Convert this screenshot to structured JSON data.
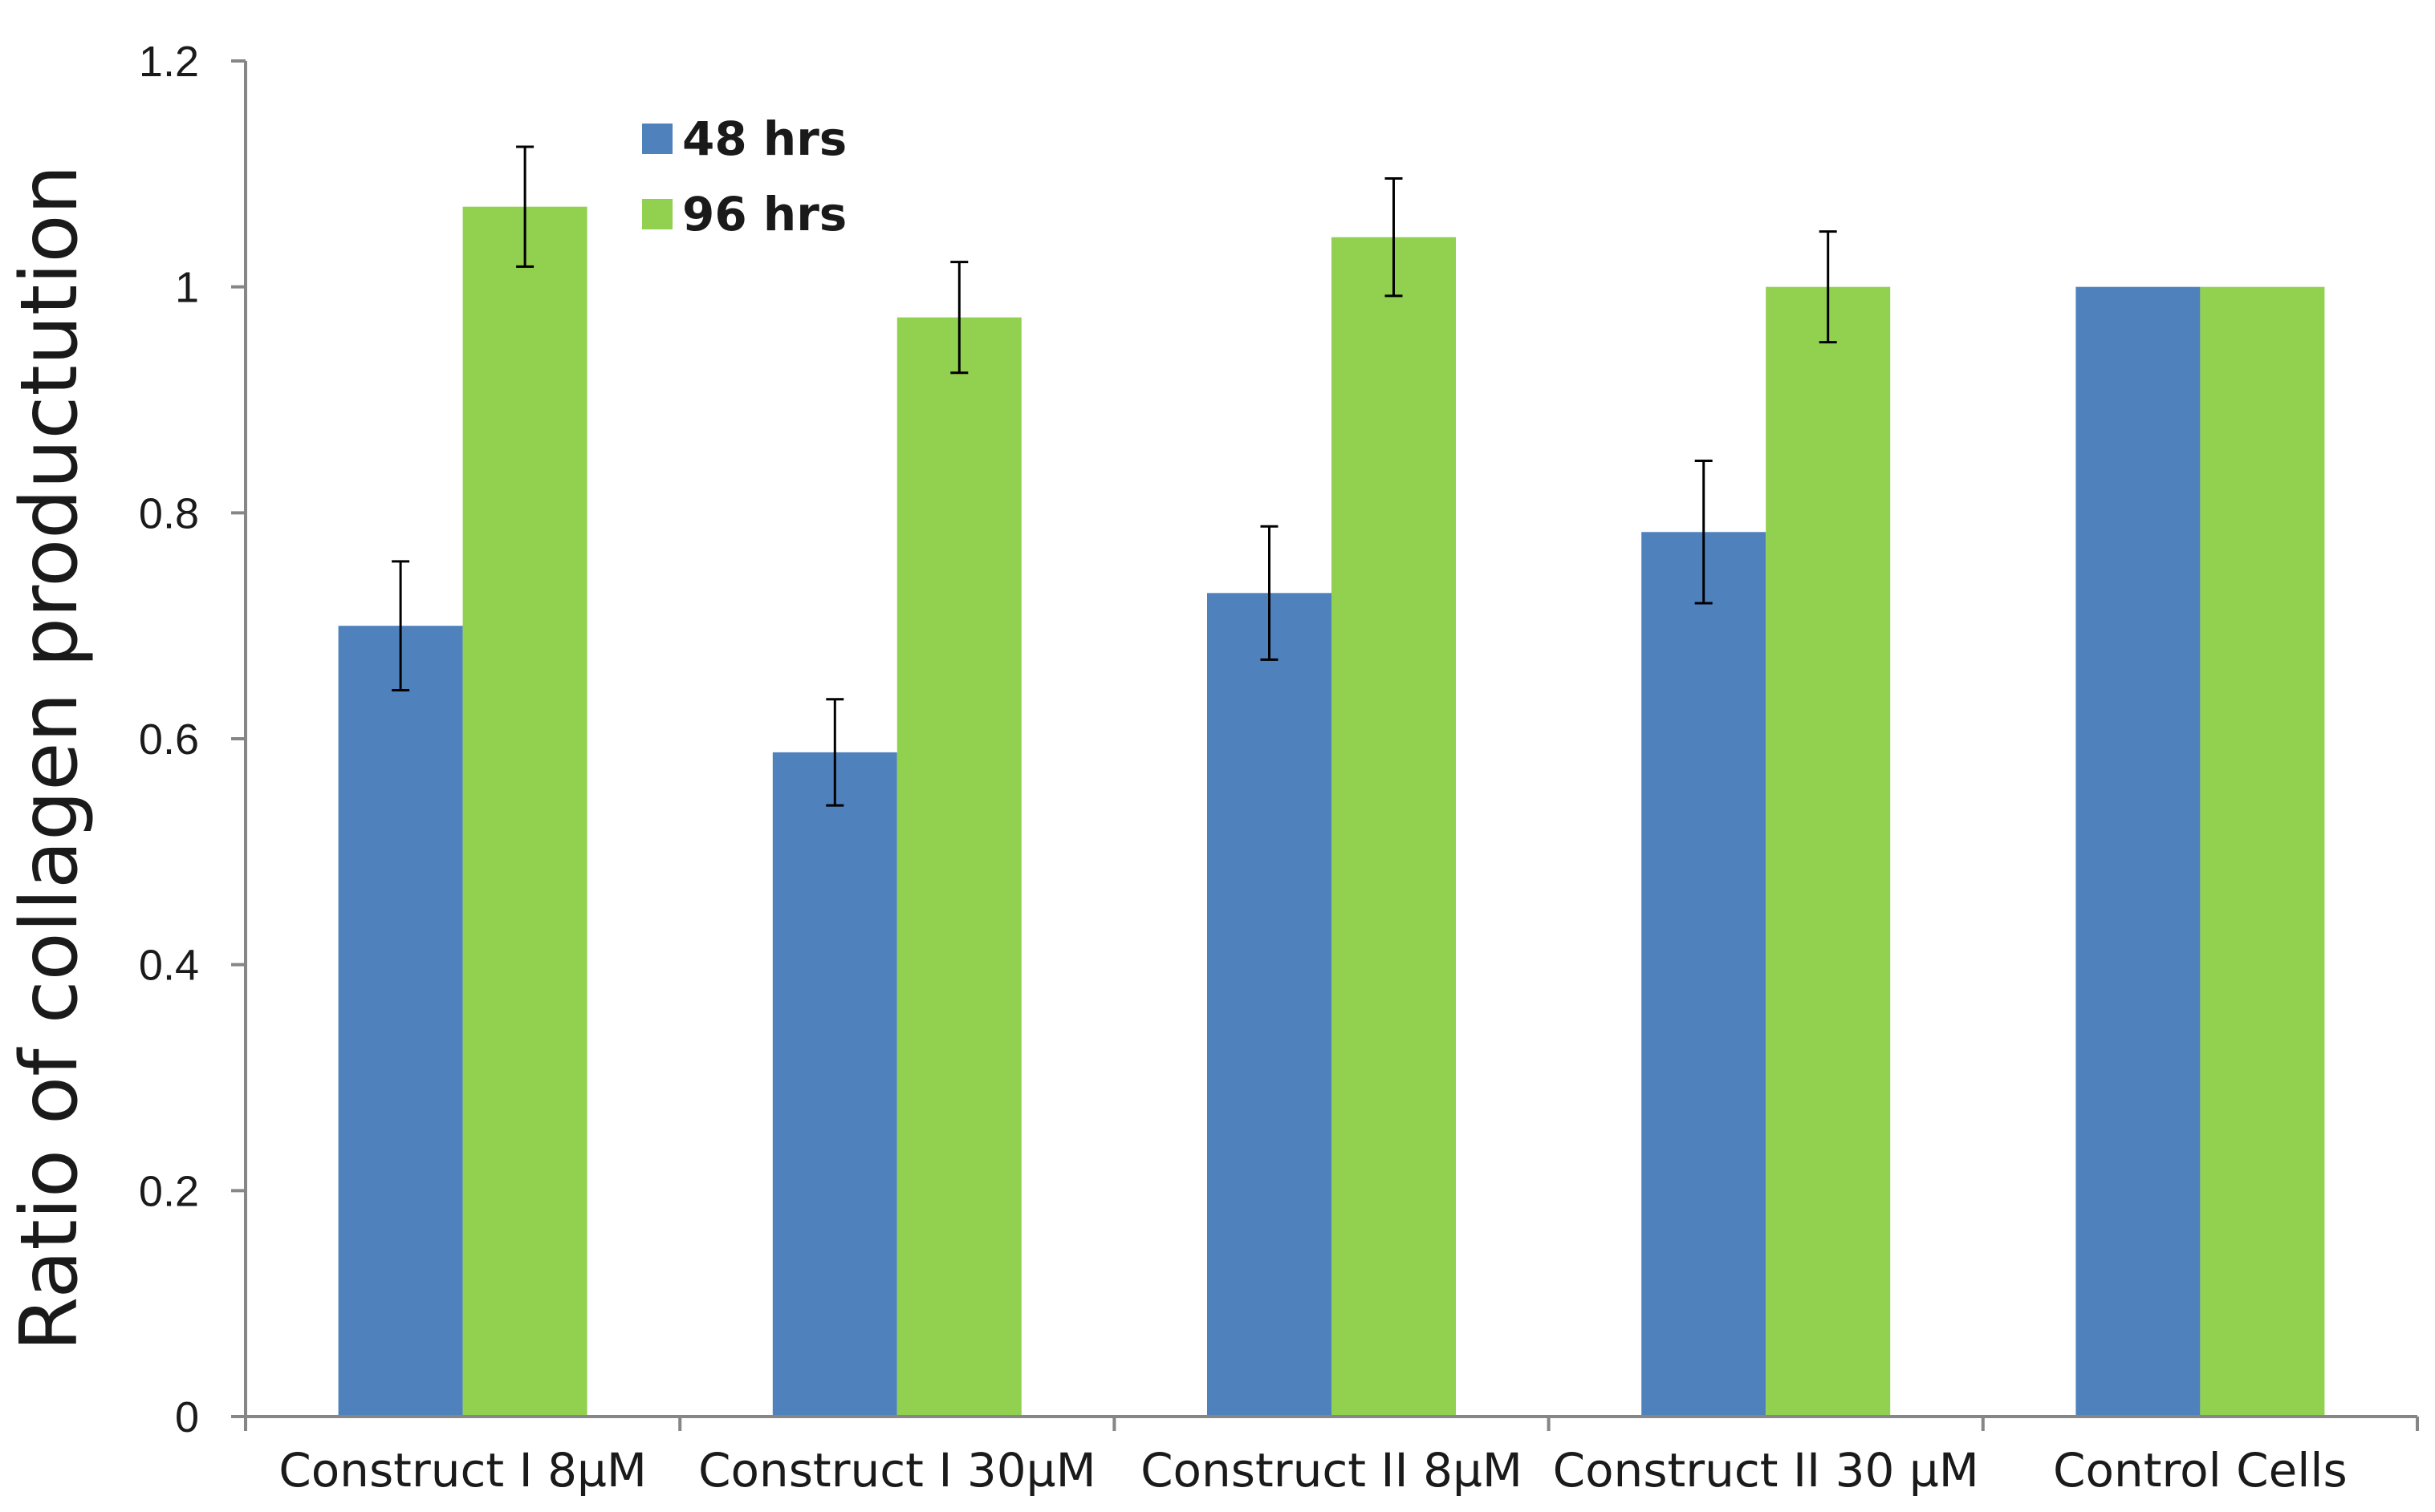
{
  "chart_data": {
    "type": "bar",
    "title": "",
    "xlabel": "",
    "ylabel": "Ratio of collagen productution",
    "ylim": [
      0,
      1.2
    ],
    "yticks": [
      0,
      0.2,
      0.4,
      0.6,
      0.8,
      1,
      1.2
    ],
    "ytick_labels": [
      "0",
      "0.2",
      "0.4",
      "0.6",
      "0.8",
      "1",
      "1.2"
    ],
    "grid": false,
    "legend_position": "top-left",
    "categories": [
      "Construct I  8µM",
      "Construct I 30µM",
      "Construct II 8µM",
      "Construct II 30 µM",
      "Control Cells"
    ],
    "series": [
      {
        "name": "48 hrs",
        "color": "#4f81bd",
        "values": [
          0.7,
          0.588,
          0.729,
          0.783,
          1.0
        ],
        "errors": [
          0.057,
          0.047,
          0.059,
          0.063,
          null
        ]
      },
      {
        "name": "96 hrs",
        "color": "#92d050",
        "values": [
          1.071,
          0.973,
          1.044,
          1.0,
          1.0
        ],
        "errors": [
          0.053,
          0.049,
          0.052,
          0.049,
          null
        ]
      }
    ]
  }
}
